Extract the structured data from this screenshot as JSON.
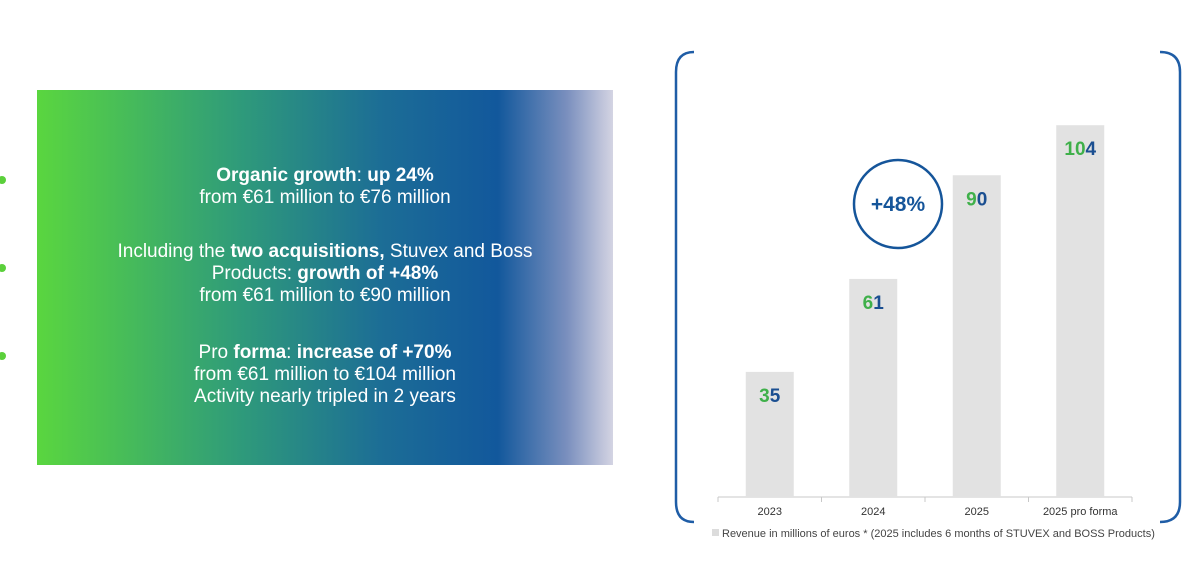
{
  "bullets": {
    "block1": {
      "bold1": "Organic growth",
      "text1": ": ",
      "bold2": "up 24%",
      "line2": "from €61 million to €76 million"
    },
    "block2": {
      "text1": "Including the ",
      "bold1": "two acquisitions,",
      "text2": " Stuvex and Boss",
      "text3": "Products: ",
      "bold2": "growth of +48%",
      "line3": "from €61 million to €90 million"
    },
    "block3": {
      "text1": "Pro ",
      "bold1": "forma",
      "text2": ": ",
      "bold2": "increase of +70%",
      "line2": "from €61 million to €104 million",
      "line3": "Activity nearly tripled in 2 years"
    }
  },
  "chart_data": {
    "type": "bar",
    "categories": [
      "2023",
      "2024",
      "2025",
      "2025 pro forma"
    ],
    "values": [
      35,
      61,
      90,
      104
    ],
    "data_labels": [
      "35",
      "61",
      "90",
      "104"
    ],
    "ylim": [
      0,
      120
    ],
    "grid": false,
    "legend_position": "bottom",
    "annotation": "+48%",
    "legend_text": "Revenue in millions of euros   * (2025  includes 6 months of STUVEX and BOSS Products)",
    "colors": {
      "bar": "#e2e2e2",
      "frame": "#1f5da6",
      "label_green": "#3fb04a",
      "label_blue": "#1b4f91",
      "circle": "#15559a"
    }
  }
}
